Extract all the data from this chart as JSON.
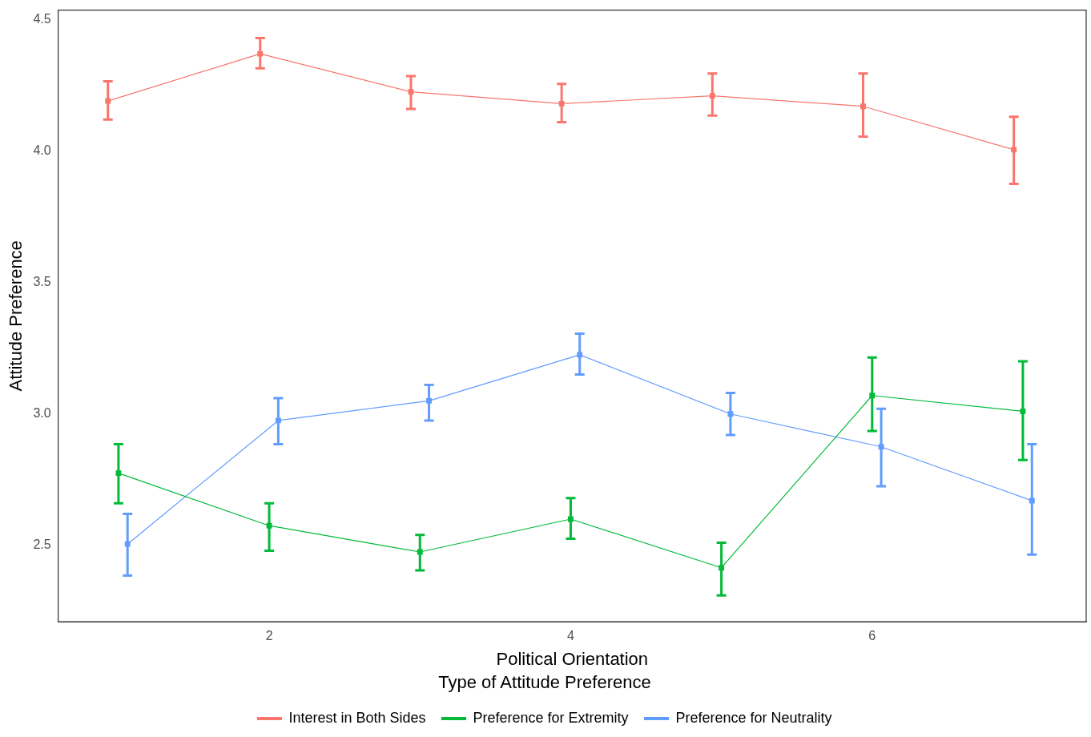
{
  "chart_data": {
    "type": "line",
    "xlabel": "Political Orientation",
    "ylabel": "Attitude Preference",
    "legend_title": "Type of Attitude Preference",
    "legend": "bottom",
    "grid": false,
    "marker": "square",
    "line_style": "solid",
    "xlim": [
      0.6,
      7.42
    ],
    "xticks": [
      2,
      4,
      6
    ],
    "ylim": [
      2.21,
      4.536
    ],
    "yticks": [
      {
        "value": 2.5,
        "label": "2.5"
      },
      {
        "value": 3,
        "label": "3.0"
      },
      {
        "value": 3.5,
        "label": "3.5"
      },
      {
        "value": 4,
        "label": "4.0"
      },
      {
        "value": 4.5,
        "label": "4.5"
      }
    ],
    "series": [
      {
        "name": "Interest in Both Sides",
        "color": "#f8766d",
        "x": [
          0.93,
          1.94,
          2.94,
          3.94,
          4.94,
          5.94,
          6.94
        ],
        "values": [
          4.19,
          4.37,
          4.225,
          4.18,
          4.21,
          4.17,
          4.005
        ],
        "errors": [
          [
            4.12,
            4.265
          ],
          [
            4.315,
            4.43
          ],
          [
            4.16,
            4.285
          ],
          [
            4.11,
            4.255
          ],
          [
            4.135,
            4.295
          ],
          [
            4.055,
            4.295
          ],
          [
            3.875,
            4.13
          ]
        ]
      },
      {
        "name": "Preference for Extremity",
        "color": "#00ba38",
        "x": [
          1,
          2,
          3,
          4,
          5,
          6,
          7
        ],
        "values": [
          2.775,
          2.575,
          2.475,
          2.6,
          2.415,
          3.07,
          3.01
        ],
        "errors": [
          [
            2.66,
            2.885
          ],
          [
            2.48,
            2.66
          ],
          [
            2.405,
            2.54
          ],
          [
            2.525,
            2.68
          ],
          [
            2.31,
            2.51
          ],
          [
            2.935,
            3.215
          ],
          [
            2.825,
            3.2
          ]
        ]
      },
      {
        "name": "Preference for Neutrality",
        "color": "#619cff",
        "x": [
          1.06,
          2.06,
          3.06,
          4.06,
          5.06,
          6.06,
          7.06
        ],
        "values": [
          2.505,
          2.975,
          3.05,
          3.225,
          3.0,
          2.875,
          2.67
        ],
        "errors": [
          [
            2.385,
            2.62
          ],
          [
            2.885,
            3.06
          ],
          [
            2.975,
            3.11
          ],
          [
            3.15,
            3.305
          ],
          [
            2.92,
            3.08
          ],
          [
            2.725,
            3.02
          ],
          [
            2.465,
            2.885
          ]
        ]
      }
    ]
  }
}
